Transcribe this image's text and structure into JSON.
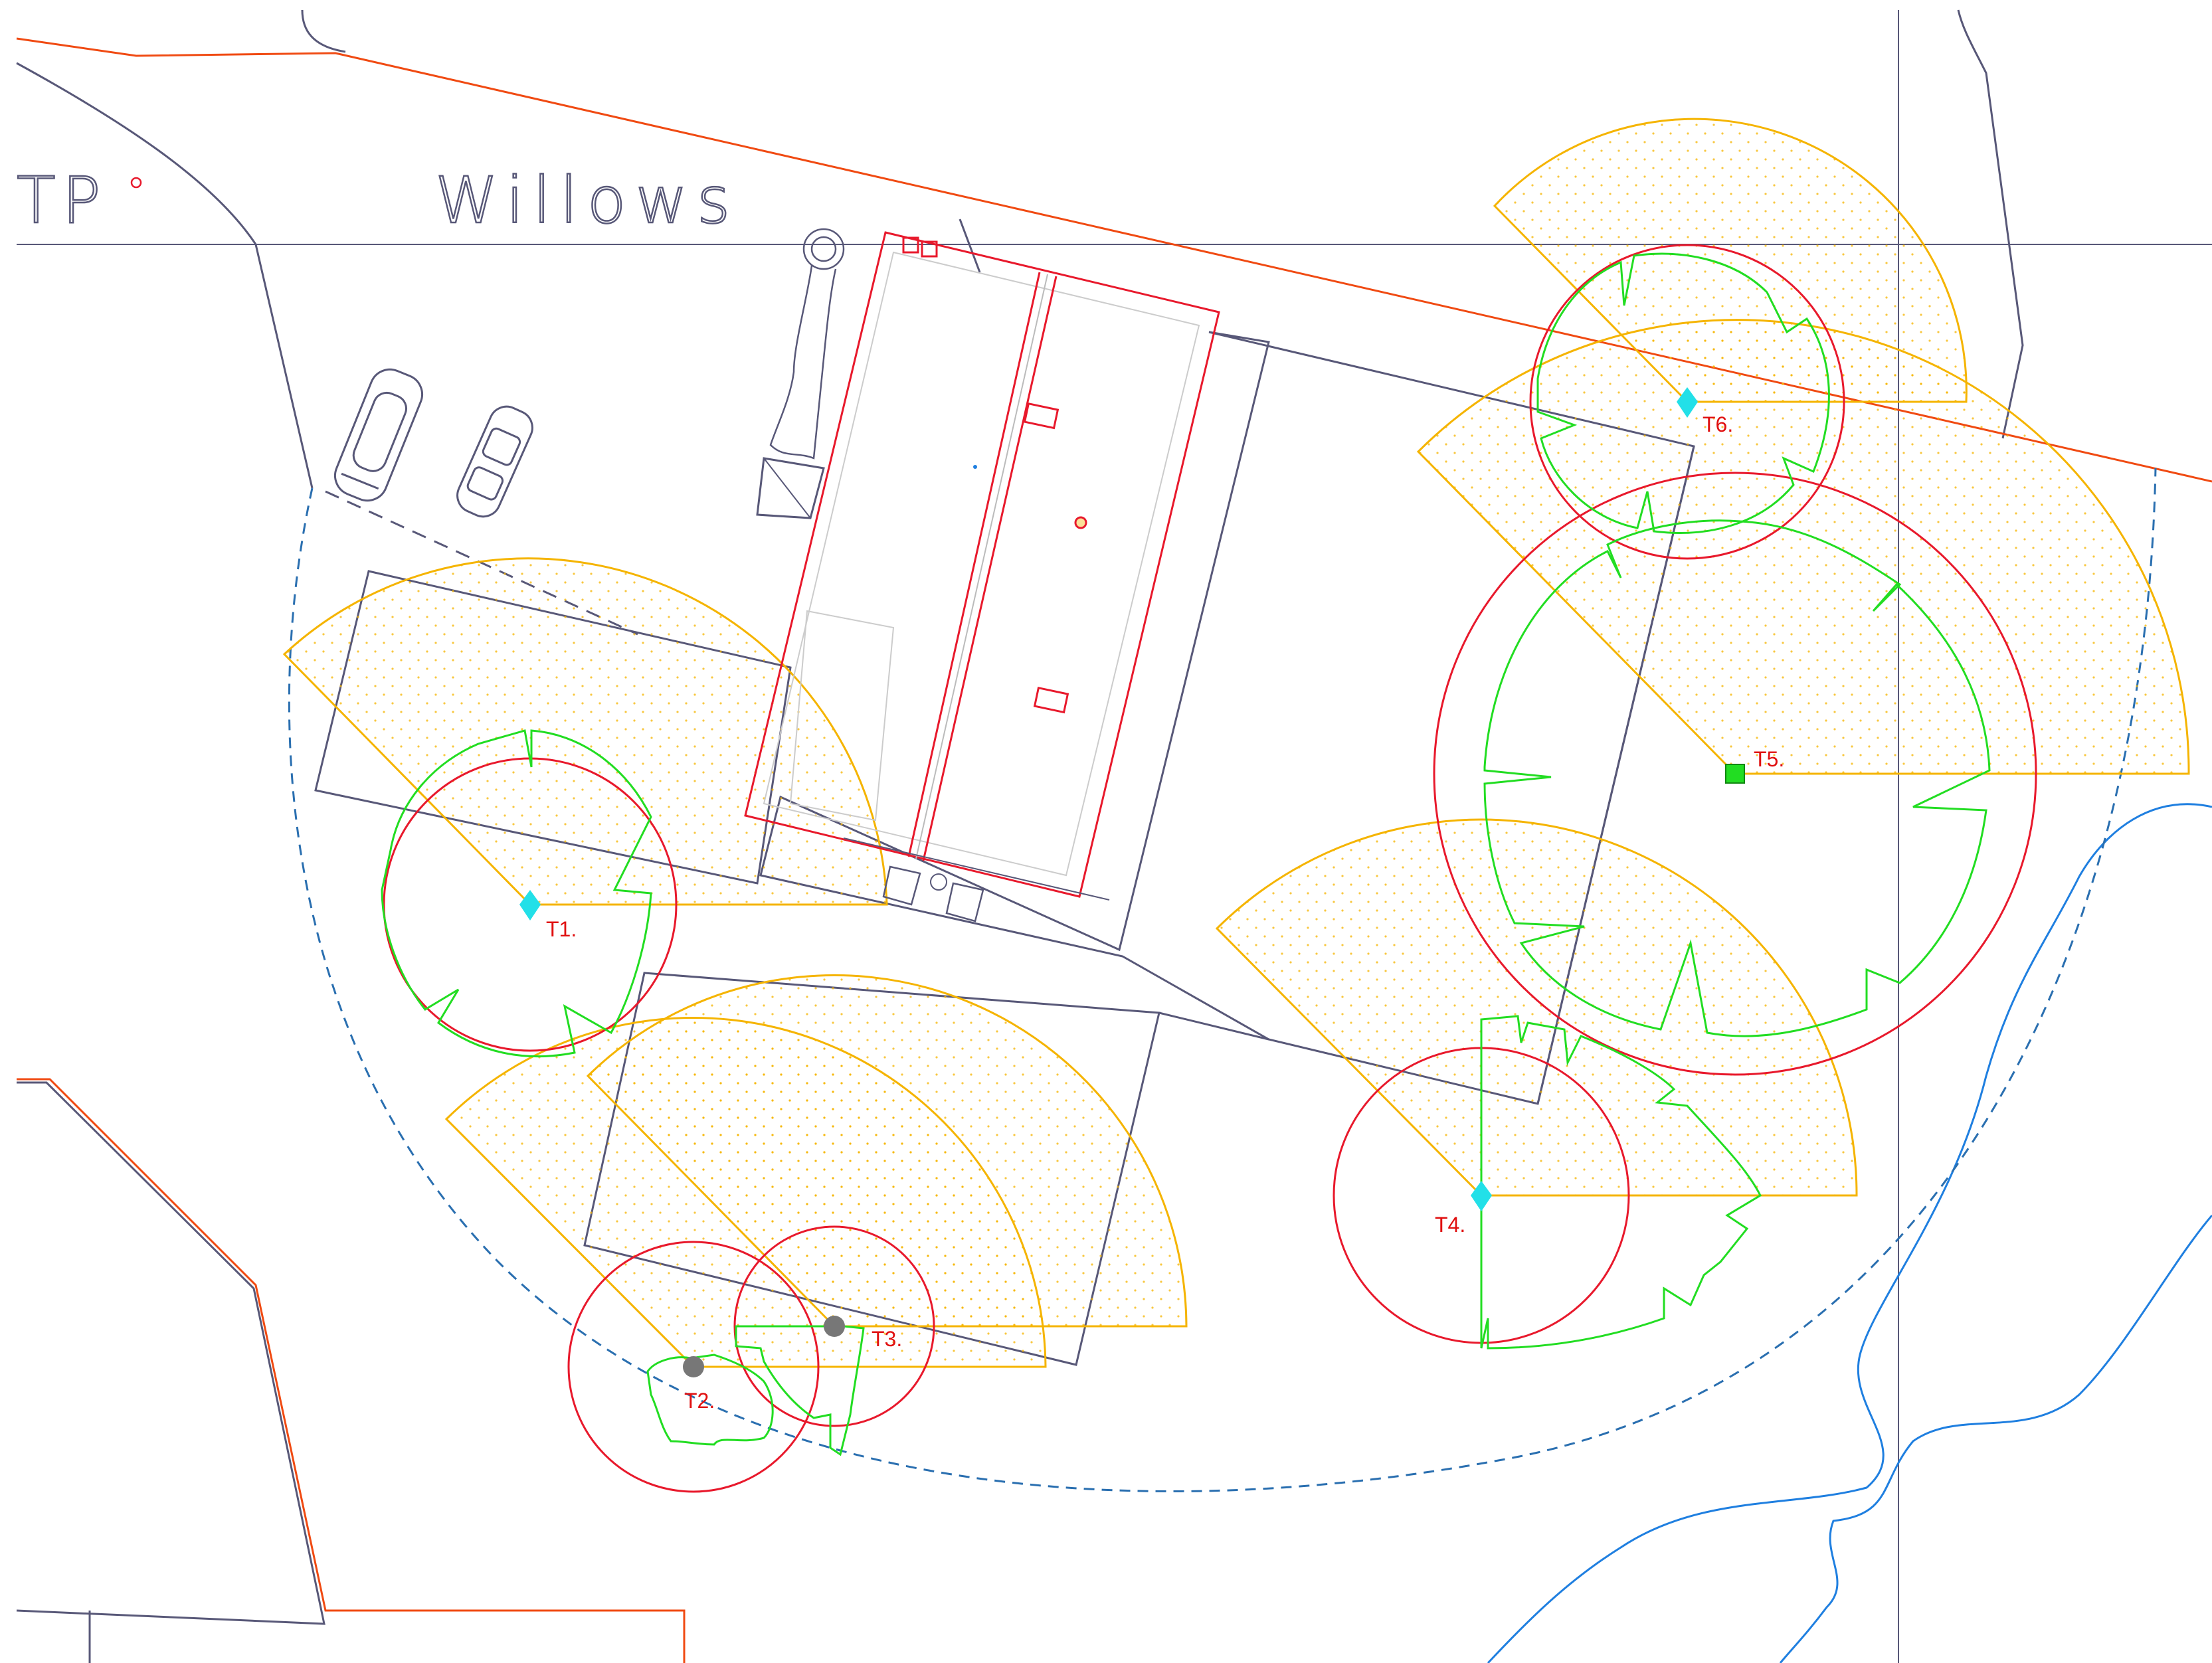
{
  "site_labels": {
    "left_label": "TP",
    "name_label": "Willows"
  },
  "trees": [
    {
      "id": "T1",
      "label": "T1.",
      "marker": "cyan-diamond"
    },
    {
      "id": "T2",
      "label": "T2.",
      "marker": "grey-circle"
    },
    {
      "id": "T3",
      "label": "T3.",
      "marker": "grey-circle"
    },
    {
      "id": "T4",
      "label": "T4.",
      "marker": "cyan-diamond"
    },
    {
      "id": "T5",
      "label": "T5.",
      "marker": "green-square"
    },
    {
      "id": "T6",
      "label": "T6.",
      "marker": "cyan-diamond"
    }
  ],
  "colors": {
    "tree_label": "#e01010",
    "rpa_circle": "#e8192c",
    "canopy": "#22dd22",
    "shade_arc": "#f5b400",
    "boundary": "#f04a12",
    "linework": "#585878",
    "watercourse": "#1f7fe0",
    "dashed_arc": "#2a6fb0",
    "building": "#e8192c"
  }
}
